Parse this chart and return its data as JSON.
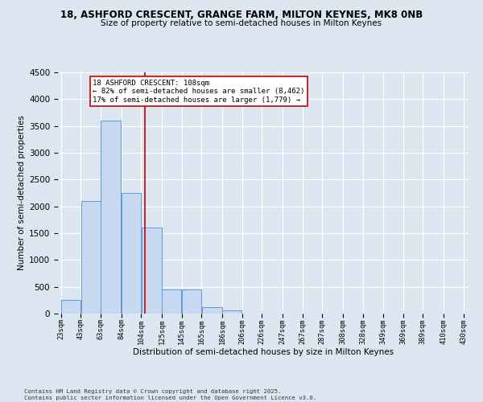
{
  "title1": "18, ASHFORD CRESCENT, GRANGE FARM, MILTON KEYNES, MK8 0NB",
  "title2": "Size of property relative to semi-detached houses in Milton Keynes",
  "xlabel": "Distribution of semi-detached houses by size in Milton Keynes",
  "ylabel": "Number of semi-detached properties",
  "annotation_title": "18 ASHFORD CRESCENT: 108sqm",
  "annotation_line1": "← 82% of semi-detached houses are smaller (8,462)",
  "annotation_line2": "17% of semi-detached houses are larger (1,779) →",
  "property_size": 108,
  "bar_left_edges": [
    23,
    43,
    63,
    84,
    104,
    125,
    145,
    165,
    186,
    206,
    226,
    247,
    267,
    287,
    308,
    328,
    349,
    369,
    389,
    410
  ],
  "bar_widths": [
    20,
    20,
    21,
    20,
    21,
    20,
    20,
    21,
    20,
    20,
    21,
    20,
    20,
    21,
    20,
    21,
    20,
    20,
    21,
    20
  ],
  "bar_heights": [
    250,
    2100,
    3600,
    2250,
    1600,
    450,
    450,
    120,
    65,
    0,
    0,
    0,
    0,
    0,
    0,
    0,
    0,
    0,
    0,
    0
  ],
  "tick_labels": [
    "23sqm",
    "43sqm",
    "63sqm",
    "84sqm",
    "104sqm",
    "125sqm",
    "145sqm",
    "165sqm",
    "186sqm",
    "206sqm",
    "226sqm",
    "247sqm",
    "267sqm",
    "287sqm",
    "308sqm",
    "328sqm",
    "349sqm",
    "369sqm",
    "389sqm",
    "410sqm",
    "430sqm"
  ],
  "tick_positions": [
    23,
    43,
    63,
    84,
    104,
    125,
    145,
    165,
    186,
    206,
    226,
    247,
    267,
    287,
    308,
    328,
    349,
    369,
    389,
    410,
    430
  ],
  "ylim": [
    0,
    4500
  ],
  "xlim": [
    20,
    435
  ],
  "bar_color": "#c6d9f0",
  "bar_edge_color": "#5b9bd5",
  "vline_color": "#cc0000",
  "vline_x": 108,
  "background_color": "#dce6f1",
  "plot_bg_color": "#dce6f1",
  "grid_color": "#ffffff",
  "footnote1": "Contains HM Land Registry data © Crown copyright and database right 2025.",
  "footnote2": "Contains public sector information licensed under the Open Government Licence v3.0."
}
